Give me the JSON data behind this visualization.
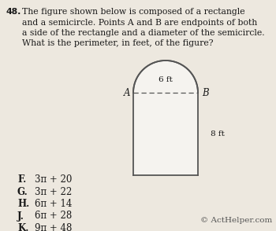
{
  "background_color": "#ede8df",
  "question_number": "48.",
  "question_text": "The figure shown below is composed of a rectangle\nand a semicircle. Points A and B are endpoints of both\na side of the rectangle and a diameter of the semicircle.\nWhat is the perimeter, in feet, of the figure?",
  "fig_label_A": "A",
  "fig_label_B": "B",
  "fig_dim_top": "6 ft",
  "fig_dim_side": "8 ft",
  "answer_choices": [
    [
      "F.",
      "3π + 20"
    ],
    [
      "G.",
      "3π + 22"
    ],
    [
      "H.",
      "6π + 14"
    ],
    [
      "J.",
      "6π + 28"
    ],
    [
      "K.",
      "9π + 48"
    ]
  ],
  "copyright": "© ActHelper.com",
  "rect_color": "#f5f3ef",
  "rect_edge_color": "#555555",
  "dashed_color": "#555555",
  "text_color": "#1a1a1a",
  "q_fontsize": 7.8,
  "ans_fontsize": 8.5,
  "copyright_fontsize": 7.5
}
